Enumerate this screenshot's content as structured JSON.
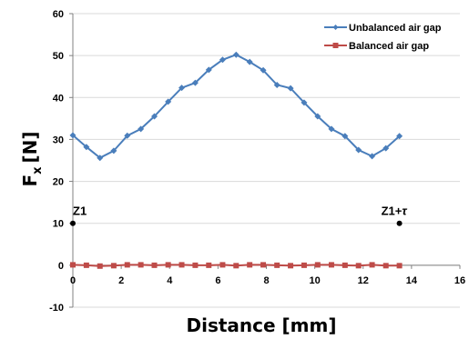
{
  "chart_data": {
    "type": "line",
    "xlabel": "Distance [mm]",
    "ylabel": "F",
    "ylabel_sub": "x",
    "ylabel_unit": "[N]",
    "xlim": [
      0,
      16
    ],
    "ylim": [
      -10,
      60
    ],
    "xticks": [
      0,
      2,
      4,
      6,
      8,
      10,
      12,
      14,
      16
    ],
    "yticks": [
      -10,
      0,
      10,
      20,
      30,
      40,
      50,
      60
    ],
    "grid": "horizontal",
    "legend_position": "top-right",
    "series": [
      {
        "name": "Unbalanced air gap",
        "color": "#4a7ebb",
        "marker": "diamond",
        "x": [
          0,
          0.56,
          1.12,
          1.69,
          2.25,
          2.81,
          3.37,
          3.94,
          4.5,
          5.06,
          5.62,
          6.19,
          6.75,
          7.31,
          7.87,
          8.44,
          9.0,
          9.56,
          10.12,
          10.69,
          11.25,
          11.81,
          12.37,
          12.94,
          13.5
        ],
        "values": [
          31,
          28.2,
          25.6,
          27.3,
          30.9,
          32.5,
          35.5,
          39,
          42.3,
          43.5,
          46.6,
          49,
          50.2,
          48.5,
          46.5,
          43,
          42.2,
          38.8,
          35.5,
          32.5,
          30.8,
          27.5,
          26,
          27.9,
          30.8
        ]
      },
      {
        "name": "Balanced air gap",
        "color": "#be4b48",
        "marker": "square",
        "x": [
          0,
          0.56,
          1.12,
          1.69,
          2.25,
          2.81,
          3.37,
          3.94,
          4.5,
          5.06,
          5.62,
          6.19,
          6.75,
          7.31,
          7.87,
          8.44,
          9.0,
          9.56,
          10.12,
          10.69,
          11.25,
          11.81,
          12.37,
          12.94,
          13.5
        ],
        "values": [
          0.1,
          0,
          -0.2,
          -0.1,
          0.1,
          0.1,
          0,
          0.1,
          0.1,
          0,
          0,
          0.1,
          -0.1,
          0.1,
          0.1,
          0,
          -0.1,
          0,
          0.1,
          0.1,
          0,
          -0.1,
          0.1,
          -0.1,
          -0.1
        ]
      }
    ],
    "annotations": [
      {
        "label": "Z1",
        "x": 0,
        "y": 10,
        "color": "#000000"
      },
      {
        "label": "Z1+",
        "label_symbol": "τ",
        "x": 13.5,
        "y": 10,
        "color": "#000000"
      }
    ]
  }
}
